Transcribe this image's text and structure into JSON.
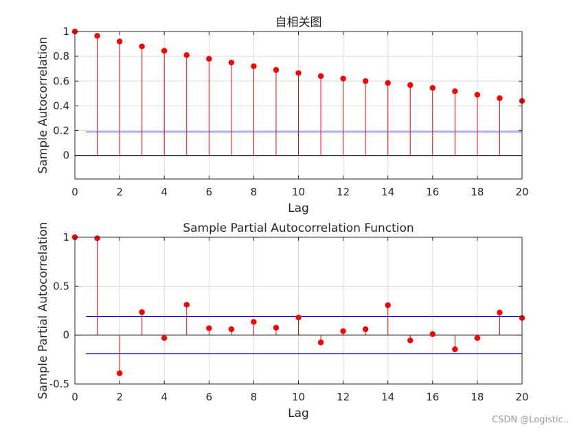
{
  "chart_data": [
    {
      "type": "stem",
      "title": "自相关图",
      "xlabel": "Lag",
      "ylabel": "Sample Autocorrelation",
      "xlim": [
        0,
        20
      ],
      "ylim": [
        -0.19,
        1.0
      ],
      "xticks": [
        0,
        2,
        4,
        6,
        8,
        10,
        12,
        14,
        16,
        18,
        20
      ],
      "yticks": [
        0,
        0.2,
        0.4,
        0.6,
        0.8,
        1
      ],
      "ytick_labels": [
        "0",
        "0.2",
        "0.4",
        "0.6",
        "0.8",
        "1"
      ],
      "grid": true,
      "x": [
        0,
        1,
        2,
        3,
        4,
        5,
        6,
        7,
        8,
        9,
        10,
        11,
        12,
        13,
        14,
        15,
        16,
        17,
        18,
        19,
        20
      ],
      "values": [
        1.0,
        0.965,
        0.92,
        0.88,
        0.845,
        0.81,
        0.78,
        0.75,
        0.72,
        0.69,
        0.665,
        0.64,
        0.62,
        0.6,
        0.585,
        0.568,
        0.545,
        0.518,
        0.49,
        0.462,
        0.44
      ],
      "bounds": [
        0.19,
        -0.19
      ],
      "bound_x_start": 0.5,
      "stem_color": "#ff0000",
      "bound_color": "#0000ff"
    },
    {
      "type": "stem",
      "title": "Sample Partial Autocorrelation Function",
      "xlabel": "Lag",
      "ylabel": "Sample Partial Autocorrelation",
      "xlim": [
        0,
        20
      ],
      "ylim": [
        -0.5,
        1.0
      ],
      "xticks": [
        0,
        2,
        4,
        6,
        8,
        10,
        12,
        14,
        16,
        18,
        20
      ],
      "yticks": [
        -0.5,
        0,
        0.5,
        1
      ],
      "ytick_labels": [
        "-0.5",
        "0",
        "0.5",
        "1"
      ],
      "grid": true,
      "x": [
        0,
        1,
        2,
        3,
        4,
        5,
        6,
        7,
        8,
        9,
        10,
        11,
        12,
        13,
        14,
        15,
        16,
        17,
        18,
        19,
        20
      ],
      "values": [
        1.0,
        0.99,
        -0.39,
        0.235,
        -0.03,
        0.31,
        0.07,
        0.06,
        0.135,
        0.075,
        0.18,
        -0.075,
        0.04,
        0.06,
        0.305,
        -0.055,
        0.01,
        -0.145,
        -0.03,
        0.23,
        0.175
      ],
      "bounds": [
        0.19,
        -0.19
      ],
      "bound_x_start": 0.5,
      "stem_color": "#ff0000",
      "bound_color": "#0000ff"
    }
  ],
  "watermark": "CSDN @Logistic.."
}
